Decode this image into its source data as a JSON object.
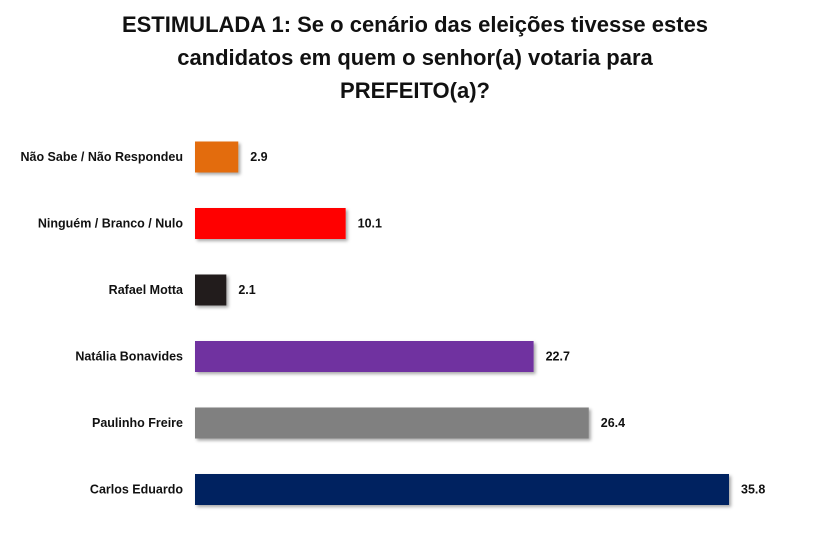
{
  "chart_data": {
    "type": "bar",
    "orientation": "horizontal",
    "title_lines": [
      "ESTIMULADA 1: Se o cenário das eleições tivesse estes",
      "candidatos em quem o senhor(a) votaria para",
      "PREFEITO(a)?"
    ],
    "categories": [
      "Não Sabe / Não Respondeu",
      "Ninguém / Branco / Nulo",
      "Rafael Motta",
      "Natália Bonavides",
      "Paulinho Freire",
      "Carlos Eduardo"
    ],
    "values": [
      2.9,
      10.1,
      2.1,
      22.7,
      26.4,
      35.8
    ],
    "value_labels": [
      "2.9",
      "10.1",
      "2.1",
      "22.7",
      "26.4",
      "35.8"
    ],
    "colors": [
      "#E36C09",
      "#FF0000",
      "#231F1A",
      "#7030A0",
      "#808080",
      "#002060"
    ],
    "xlim": [
      0,
      36
    ],
    "grid": false,
    "legend": "none",
    "xlabel": "",
    "ylabel": ""
  }
}
